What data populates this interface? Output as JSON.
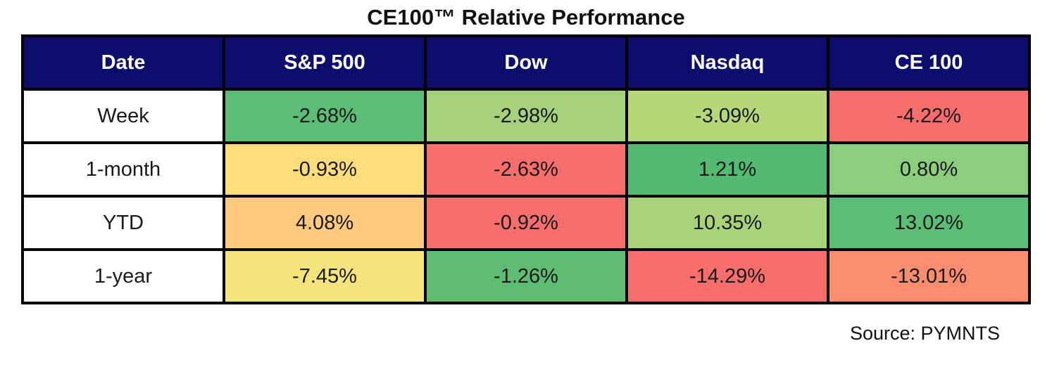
{
  "title": "CE100™ Relative Performance",
  "source_note": "Source: PYMNTS",
  "colors": {
    "header_bg": "#0d0d6e",
    "header_text": "#ffffff",
    "border": "#000000",
    "strong_red": "#f76e6c",
    "salmon": "#fa8d6f",
    "strong_green": "#5cbd76",
    "yellow": "#fddc7a",
    "orange": "#fdc97c"
  },
  "chart_data": {
    "type": "table",
    "subtype": "heatmap-color-scale",
    "title": "CE100™ Relative Performance",
    "columns": [
      "Date",
      "S&P 500",
      "Dow",
      "Nasdaq",
      "CE 100"
    ],
    "rows": [
      {
        "label": "Week",
        "cells": [
          {
            "display": "-2.68%",
            "value": -2.68,
            "bg": "#5cbd77"
          },
          {
            "display": "-2.98%",
            "value": -2.98,
            "bg": "#a4d179"
          },
          {
            "display": "-3.09%",
            "value": -3.09,
            "bg": "#b5d778"
          },
          {
            "display": "-4.22%",
            "value": -4.22,
            "bg": "#f76e6c"
          }
        ]
      },
      {
        "label": "1-month",
        "cells": [
          {
            "display": "-0.93%",
            "value": -0.93,
            "bg": "#fddc7a"
          },
          {
            "display": "-2.63%",
            "value": -2.63,
            "bg": "#f76e6c"
          },
          {
            "display": "1.21%",
            "value": 1.21,
            "bg": "#53ba72"
          },
          {
            "display": "0.80%",
            "value": 0.8,
            "bg": "#8cce7d"
          }
        ]
      },
      {
        "label": "YTD",
        "cells": [
          {
            "display": "4.08%",
            "value": 4.08,
            "bg": "#fdc97c"
          },
          {
            "display": "-0.92%",
            "value": -0.92,
            "bg": "#f76e6c"
          },
          {
            "display": "10.35%",
            "value": 10.35,
            "bg": "#a8d378"
          },
          {
            "display": "13.02%",
            "value": 13.02,
            "bg": "#5cbd76"
          }
        ]
      },
      {
        "label": "1-year",
        "cells": [
          {
            "display": "-7.45%",
            "value": -7.45,
            "bg": "#f5e47b"
          },
          {
            "display": "-1.26%",
            "value": -1.26,
            "bg": "#5ebd72"
          },
          {
            "display": "-14.29%",
            "value": -14.29,
            "bg": "#f76e6c"
          },
          {
            "display": "-13.01%",
            "value": -13.01,
            "bg": "#fa8d6f"
          }
        ]
      }
    ]
  }
}
